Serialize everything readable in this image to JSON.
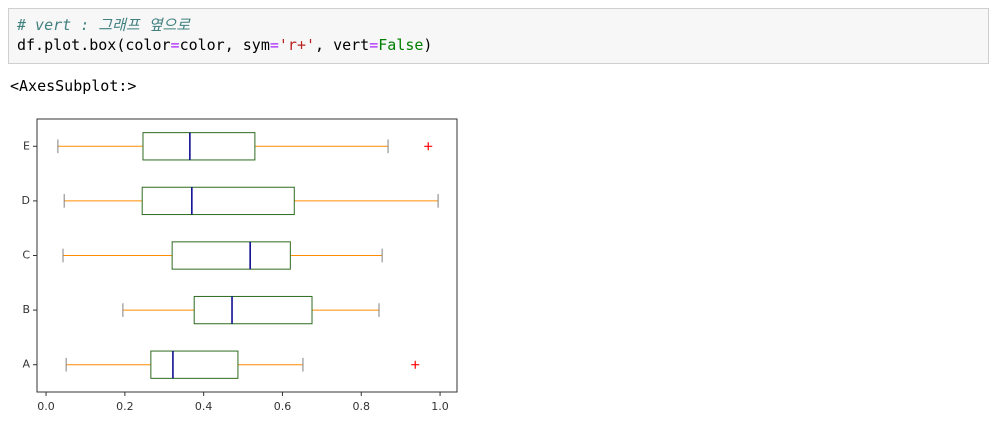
{
  "code": {
    "comment": "# vert : 그래프 옆으로",
    "tokens": [
      "df.plot.box(color",
      "=",
      "color, sym",
      "=",
      "'r+'",
      ", vert",
      "=",
      "False",
      ")"
    ]
  },
  "output": "<AxesSubplot:>",
  "chart_data": {
    "type": "box",
    "orientation": "horizontal",
    "categories": [
      "A",
      "B",
      "C",
      "D",
      "E"
    ],
    "boxes": [
      {
        "low": 0.051,
        "q1": 0.266,
        "median": 0.322,
        "q3": 0.487,
        "high": 0.652,
        "outliers": [
          0.937
        ]
      },
      {
        "low": 0.195,
        "q1": 0.376,
        "median": 0.472,
        "q3": 0.675,
        "high": 0.845,
        "outliers": []
      },
      {
        "low": 0.043,
        "q1": 0.32,
        "median": 0.518,
        "q3": 0.62,
        "high": 0.853,
        "outliers": []
      },
      {
        "low": 0.046,
        "q1": 0.244,
        "median": 0.37,
        "q3": 0.63,
        "high": 0.995,
        "outliers": []
      },
      {
        "low": 0.03,
        "q1": 0.246,
        "median": 0.365,
        "q3": 0.53,
        "high": 0.868,
        "outliers": [
          0.97
        ]
      }
    ],
    "colors": {
      "boxes": "#2e6b1f",
      "whiskers": "#ff8c00",
      "medians": "#00008b",
      "caps": "#808080",
      "outliers": "#ff0000"
    },
    "xlim": [
      -0.023,
      1.043
    ],
    "xticks": [
      {
        "value": 0,
        "label": "0.0"
      },
      {
        "value": 0.2,
        "label": "0.2"
      },
      {
        "value": 0.4,
        "label": "0.4"
      },
      {
        "value": 0.6,
        "label": "0.6"
      },
      {
        "value": 0.8,
        "label": "0.8"
      },
      {
        "value": 1,
        "label": "1.0"
      }
    ]
  }
}
